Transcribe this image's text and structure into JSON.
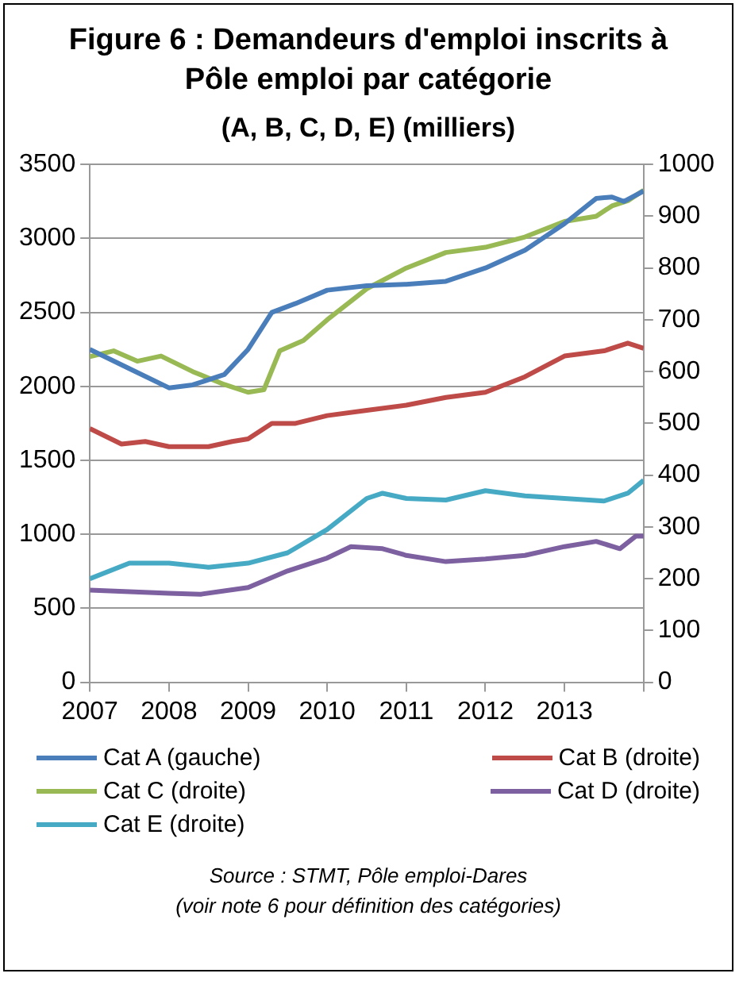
{
  "chart_data": {
    "type": "line",
    "title": "Figure 6 : Demandeurs d'emploi inscrits à Pôle emploi par catégorie",
    "subtitle": "(A, B, C, D, E) (milliers)",
    "annotations": [
      "Source : STMT, Pôle emploi-Dares",
      "(voir note 6 pour définition des catégories)"
    ],
    "xlim": [
      2007,
      2014
    ],
    "xticks": [
      2007,
      2008,
      2009,
      2010,
      2011,
      2012,
      2013,
      {
        "value": 2014,
        "label": null
      }
    ],
    "ylim": [
      0,
      3500
    ],
    "yticks": [
      0,
      500,
      1000,
      1500,
      2000,
      2500,
      3000,
      3500
    ],
    "y2lim": [
      0,
      1000
    ],
    "y2ticks": [
      0,
      100,
      200,
      300,
      400,
      500,
      600,
      700,
      800,
      900,
      1000
    ],
    "grid": "y",
    "legend": "bottom",
    "marker": "none",
    "line_style": "solid",
    "series": [
      {
        "name": "Cat A (gauche)",
        "color": "#4a7ebb",
        "x": [
          2007,
          2007.5,
          2008,
          2008.3,
          2008.7,
          2009,
          2009.3,
          2009.6,
          2010,
          2010.5,
          2011,
          2011.5,
          2012,
          2012.5,
          2013,
          2013.4,
          2013.6,
          2013.75,
          2014
        ],
        "values": [
          2250,
          2120,
          1990,
          2010,
          2080,
          2250,
          2500,
          2560,
          2650,
          2680,
          2690,
          2710,
          2800,
          2920,
          3100,
          3270,
          3280,
          3250,
          3320
        ]
      },
      {
        "name": "Cat B (droite)",
        "color": "#be4b48",
        "axis": "y2",
        "x": [
          2007,
          2007.4,
          2007.7,
          2008,
          2008.5,
          2008.8,
          2009,
          2009.3,
          2009.6,
          2010,
          2010.5,
          2011,
          2011.5,
          2012,
          2012.5,
          2013,
          2013.5,
          2013.8,
          2014
        ],
        "values": [
          490,
          460,
          465,
          455,
          455,
          465,
          470,
          500,
          500,
          515,
          525,
          535,
          550,
          560,
          590,
          630,
          640,
          655,
          645
        ]
      },
      {
        "name": "Cat C (droite)",
        "color": "#98b954",
        "axis": "y2",
        "x": [
          2007,
          2007.3,
          2007.6,
          2007.9,
          2008.3,
          2008.7,
          2009,
          2009.2,
          2009.4,
          2009.7,
          2010,
          2010.5,
          2011,
          2011.5,
          2012,
          2012.5,
          2013,
          2013.4,
          2013.6,
          2013.8,
          2014
        ],
        "values": [
          629,
          640,
          620,
          630,
          600,
          575,
          560,
          565,
          640,
          660,
          700,
          760,
          800,
          830,
          840,
          860,
          890,
          900,
          920,
          930,
          950
        ]
      },
      {
        "name": "Cat D (droite)",
        "color": "#7d60a0",
        "axis": "y2",
        "x": [
          2007,
          2008,
          2008.4,
          2009,
          2009.5,
          2010,
          2010.3,
          2010.7,
          2011,
          2011.5,
          2012,
          2012.5,
          2013,
          2013.4,
          2013.7,
          2013.9,
          2014
        ],
        "values": [
          178,
          172,
          170,
          183,
          215,
          240,
          262,
          258,
          245,
          233,
          238,
          245,
          262,
          272,
          258,
          282,
          282
        ]
      },
      {
        "name": "Cat E (droite)",
        "color": "#46aac5",
        "axis": "y2",
        "x": [
          2007,
          2007.5,
          2008,
          2008.5,
          2009,
          2009.5,
          2010,
          2010.5,
          2010.7,
          2011,
          2011.5,
          2012,
          2012.5,
          2013,
          2013.5,
          2013.8,
          2014
        ],
        "values": [
          200,
          230,
          230,
          222,
          230,
          250,
          295,
          355,
          365,
          355,
          352,
          370,
          360,
          355,
          350,
          365,
          390
        ]
      }
    ]
  }
}
